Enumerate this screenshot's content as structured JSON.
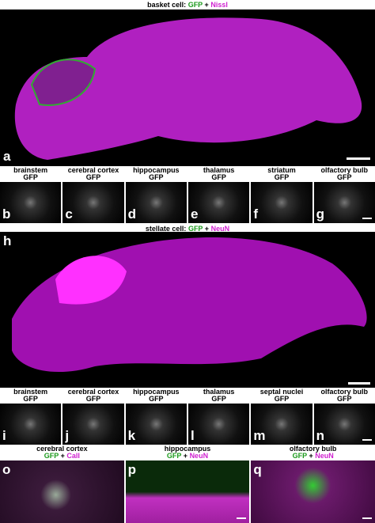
{
  "figure": {
    "top_title": {
      "label": "basket cell:",
      "stain1": "GFP",
      "plus": "+",
      "stain2": "Nissl"
    },
    "panel_a": {
      "letter": "a"
    },
    "row1": [
      {
        "letter": "b",
        "region": "brainstem",
        "stain": "GFP"
      },
      {
        "letter": "c",
        "region": "cerebral cortex",
        "stain": "GFP"
      },
      {
        "letter": "d",
        "region": "hippocampus",
        "stain": "GFP"
      },
      {
        "letter": "e",
        "region": "thalamus",
        "stain": "GFP"
      },
      {
        "letter": "f",
        "region": "striatum",
        "stain": "GFP"
      },
      {
        "letter": "g",
        "region": "olfactory bulb",
        "stain": "GFP"
      }
    ],
    "bottom_title": {
      "label": "stellate cell:",
      "stain1": "GFP",
      "plus": "+",
      "stain2": "NeuN"
    },
    "panel_h": {
      "letter": "h"
    },
    "row2": [
      {
        "letter": "i",
        "region": "brainstem",
        "stain": "GFP"
      },
      {
        "letter": "j",
        "region": "cerebral cortex",
        "stain": "GFP"
      },
      {
        "letter": "k",
        "region": "hippocampus",
        "stain": "GFP"
      },
      {
        "letter": "l",
        "region": "thalamus",
        "stain": "GFP"
      },
      {
        "letter": "m",
        "region": "septal nuclei",
        "stain": "GFP"
      },
      {
        "letter": "n",
        "region": "olfactory bulb",
        "stain": "GFP"
      }
    ],
    "row3": [
      {
        "letter": "o",
        "region": "cerebral cortex",
        "stain1": "GFP",
        "plus": "+",
        "stain2": "CalI"
      },
      {
        "letter": "p",
        "region": "hippocampus",
        "stain1": "GFP",
        "plus": "+",
        "stain2": "NeuN"
      },
      {
        "letter": "q",
        "region": "olfactory bulb",
        "stain1": "GFP",
        "plus": "+",
        "stain2": "NeuN"
      }
    ]
  }
}
